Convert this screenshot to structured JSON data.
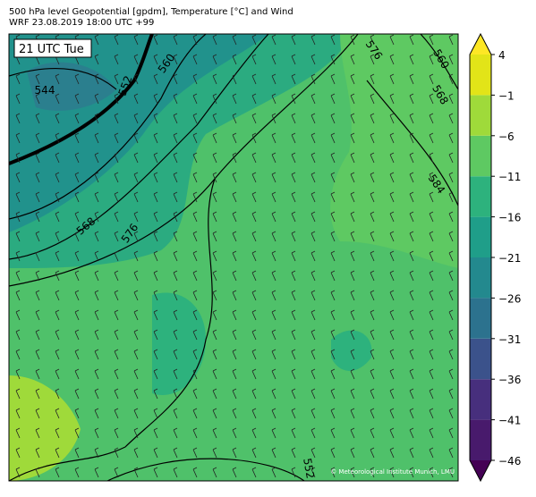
{
  "header": {
    "title": "500 hPa level Geopotential [gpdm], Temperature [°C] and Wind",
    "subtitle": "WRF 23.08.2019 18:00 UTC +99"
  },
  "map": {
    "time_label": "21 UTC Tue",
    "contour_labels": [
      544,
      552,
      560,
      568,
      576,
      576,
      560,
      568,
      584,
      552
    ],
    "credit": "© Meteorological Institute Munich, LMU"
  },
  "colorbar": {
    "ticks": [
      {
        "value": 4,
        "label": "4"
      },
      {
        "value": -1,
        "label": "−1"
      },
      {
        "value": -6,
        "label": "−6"
      },
      {
        "value": -11,
        "label": "−11"
      },
      {
        "value": -16,
        "label": "−16"
      },
      {
        "value": -21,
        "label": "−21"
      },
      {
        "value": -26,
        "label": "−26"
      },
      {
        "value": -31,
        "label": "−31"
      },
      {
        "value": -36,
        "label": "−36"
      },
      {
        "value": -41,
        "label": "−41"
      },
      {
        "value": -46,
        "label": "−46"
      }
    ],
    "colors": [
      "#440154",
      "#481a6c",
      "#472f7d",
      "#3b528b",
      "#2c728e",
      "#23898e",
      "#1f9e89",
      "#2db27d",
      "#5ec962",
      "#9fda3a",
      "#e2e418",
      "#fde725"
    ]
  }
}
